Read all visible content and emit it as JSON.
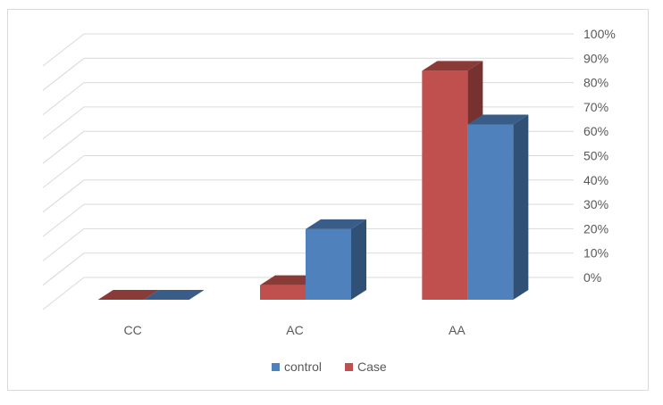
{
  "chart_data": {
    "type": "bar",
    "categories": [
      "CC",
      "AC",
      "AA"
    ],
    "series": [
      {
        "name": "Case",
        "values": [
          0,
          6,
          94
        ],
        "color": "#c0504d"
      },
      {
        "name": "control",
        "values": [
          0,
          29,
          72
        ],
        "color": "#4f81bd"
      }
    ],
    "y_ticks": [
      "0%",
      "10%",
      "20%",
      "30%",
      "40%",
      "50%",
      "60%",
      "70%",
      "80%",
      "90%",
      "100%"
    ],
    "ylim": [
      0,
      100
    ],
    "y_axis_position": "right",
    "grid": true,
    "legend": {
      "placement": "bottom",
      "entries": [
        "control",
        "Case"
      ]
    },
    "style": "3d-clustered-column"
  }
}
